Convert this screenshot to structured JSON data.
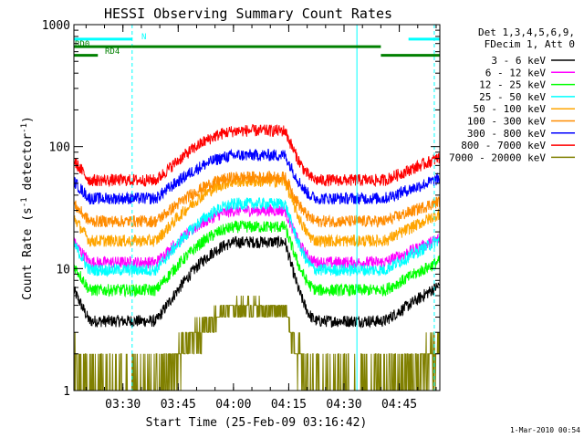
{
  "chart_data": {
    "type": "line",
    "title": "HESSI Observing Summary Count Rates",
    "xlabel": "Start Time (25-Feb-09 03:16:42)",
    "ylabel_main": "Count Rate (s",
    "ylabel_sup1": "-1",
    "ylabel_mid": " detector",
    "ylabel_sup2": "-1",
    "ylabel_end": ")",
    "yscale": "log",
    "ylim": [
      1,
      1000
    ],
    "xlim_minutes": [
      196.7,
      296.0
    ],
    "x_ticks": [
      {
        "label": "03:30",
        "minute": 210
      },
      {
        "label": "03:45",
        "minute": 225
      },
      {
        "label": "04:00",
        "minute": 240
      },
      {
        "label": "04:15",
        "minute": 255
      },
      {
        "label": "04:30",
        "minute": 270
      },
      {
        "label": "04:45",
        "minute": 285
      }
    ],
    "y_ticks": [
      {
        "label": "1",
        "value": 1
      },
      {
        "label": "10",
        "value": 10
      },
      {
        "label": "100",
        "value": 100
      },
      {
        "label": "1000",
        "value": 1000
      }
    ],
    "timestamp": "1-Mar-2010 00:54",
    "legend_header": [
      "Det 1,3,4,5,6,9,",
      "FDecim 1, Att 0"
    ],
    "legend_placement": "right",
    "series": [
      {
        "name": "3 - 6 keV",
        "color": "#000000",
        "min": 3.6,
        "peak": 16.5,
        "base": 0
      },
      {
        "name": "6 - 12 keV",
        "color": "#ff00ff",
        "min": 11,
        "peak": 30,
        "base": 0
      },
      {
        "name": "12 - 25 keV",
        "color": "#00ff00",
        "min": 6.5,
        "peak": 22,
        "base": 0
      },
      {
        "name": "25 - 50 keV",
        "color": "#00ffff",
        "min": 9.5,
        "peak": 34,
        "base": 0
      },
      {
        "name": "50 - 100 keV",
        "color": "#ffa500",
        "min": 16.5,
        "peak": 52,
        "base": 0
      },
      {
        "name": "100 - 300 keV",
        "color": "#ff8c00",
        "min": 24,
        "peak": 56,
        "base": 0
      },
      {
        "name": "300 - 800 keV",
        "color": "#0000ff",
        "min": 37,
        "peak": 85,
        "base": 0
      },
      {
        "name": "800 - 7000 keV",
        "color": "#ff0000",
        "min": 52,
        "peak": 135,
        "base": 0
      },
      {
        "name": "7000 - 20000 keV",
        "color": "#808000",
        "min": 1,
        "peak": 4.8,
        "base": 1
      }
    ],
    "bars": [
      {
        "label": "N",
        "color": "#00ffff",
        "level": 760,
        "segments": [
          [
            196.7,
            212.5
          ],
          [
            287.5,
            296.0
          ]
        ]
      },
      {
        "label": "RD0",
        "color": "#008000",
        "level": 660,
        "segments": [
          [
            196.7,
            212.5
          ],
          [
            212.5,
            280.0
          ]
        ]
      },
      {
        "label": "RD4",
        "color": "#008000",
        "level": 560,
        "segments": [
          [
            196.7,
            203.2
          ],
          [
            280.0,
            296.0
          ]
        ]
      }
    ],
    "vlines": [
      {
        "minute": 212.5,
        "style": "dashed",
        "color": "#00ffff"
      },
      {
        "minute": 273.5,
        "style": "solid",
        "color": "#00ffff"
      },
      {
        "minute": 294.5,
        "style": "dashed",
        "color": "#00ffff"
      }
    ]
  }
}
